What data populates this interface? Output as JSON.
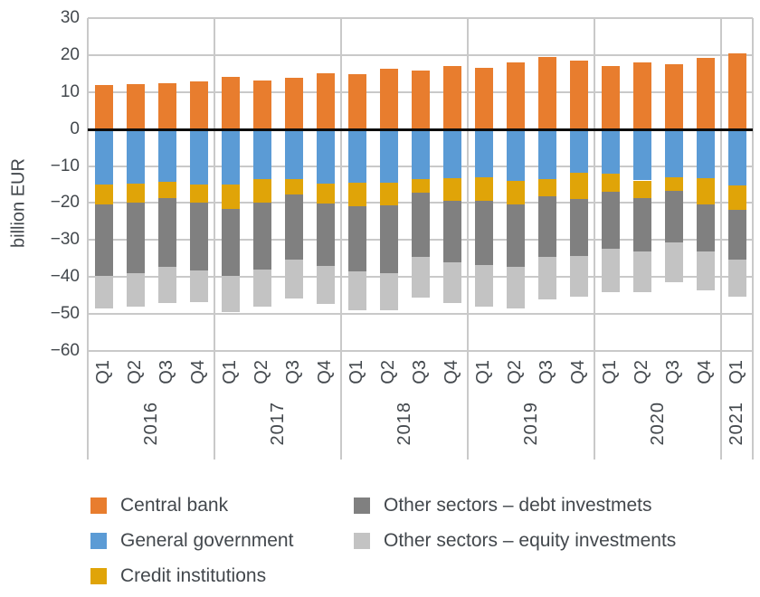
{
  "chart_data": {
    "type": "bar",
    "stacked": true,
    "title": "",
    "xlabel": "",
    "ylabel": "billion EUR",
    "ylim": [
      -60,
      30
    ],
    "ytick_values": [
      30,
      20,
      10,
      0,
      -10,
      -20,
      -30,
      -40,
      -50,
      -60
    ],
    "ytick_labels": [
      "30",
      "20",
      "10",
      "0",
      "−10",
      "−20",
      "−30",
      "−40",
      "−50",
      "−60"
    ],
    "grid": true,
    "legend_position": "bottom",
    "quarters": [
      "Q1",
      "Q2",
      "Q3",
      "Q4",
      "Q1",
      "Q2",
      "Q3",
      "Q4",
      "Q1",
      "Q2",
      "Q3",
      "Q4",
      "Q1",
      "Q2",
      "Q3",
      "Q4",
      "Q1",
      "Q2",
      "Q3",
      "Q4",
      "Q1"
    ],
    "year_groups": [
      {
        "label": "2016",
        "count": 4
      },
      {
        "label": "2017",
        "count": 4
      },
      {
        "label": "2018",
        "count": 4
      },
      {
        "label": "2019",
        "count": 4
      },
      {
        "label": "2020",
        "count": 4
      },
      {
        "label": "2021",
        "count": 1
      }
    ],
    "series": [
      {
        "name": "Central bank",
        "color": "#E87D2E",
        "values": [
          11.8,
          12.1,
          12.5,
          12.9,
          14.0,
          13.1,
          13.8,
          15.2,
          14.8,
          16.3,
          15.8,
          17.0,
          16.6,
          18.1,
          19.4,
          18.6,
          17.1,
          17.9,
          17.6,
          19.2,
          20.5
        ]
      },
      {
        "name": "General government",
        "color": "#5B9BD5",
        "values": [
          -15.0,
          -14.7,
          -14.2,
          -14.9,
          -15.0,
          -13.6,
          -13.6,
          -14.8,
          -14.5,
          -14.5,
          -13.6,
          -13.2,
          -13.0,
          -14.0,
          -13.5,
          -11.9,
          -12.0,
          -13.9,
          -13.1,
          -13.4,
          -15.3
        ]
      },
      {
        "name": "Credit institutions",
        "color": "#E0A408",
        "values": [
          -5.5,
          -5.3,
          -4.4,
          -4.9,
          -6.6,
          -6.2,
          -4.1,
          -5.3,
          -6.3,
          -6.1,
          -3.7,
          -6.1,
          -6.3,
          -6.5,
          -4.6,
          -7.0,
          -4.9,
          -4.8,
          -3.6,
          -7.0,
          -6.5
        ]
      },
      {
        "name": "Other sectors – debt investmets",
        "color": "#808080",
        "values": [
          -19.3,
          -18.9,
          -18.6,
          -18.4,
          -18.1,
          -18.2,
          -17.7,
          -17.0,
          -17.7,
          -18.3,
          -17.3,
          -16.8,
          -17.4,
          -16.8,
          -16.4,
          -15.4,
          -15.5,
          -14.3,
          -14.0,
          -12.8,
          -13.6
        ]
      },
      {
        "name": "Other sectors – equity investments",
        "color": "#C3C3C3",
        "values": [
          -8.7,
          -9.0,
          -9.9,
          -8.5,
          -9.8,
          -10.0,
          -10.5,
          -10.2,
          -10.6,
          -10.0,
          -11.0,
          -10.9,
          -11.3,
          -11.3,
          -11.5,
          -11.0,
          -11.6,
          -11.1,
          -10.8,
          -10.5,
          -10.0
        ]
      }
    ],
    "legend_columns": [
      [
        0,
        1,
        2
      ],
      [
        3,
        4
      ]
    ]
  }
}
